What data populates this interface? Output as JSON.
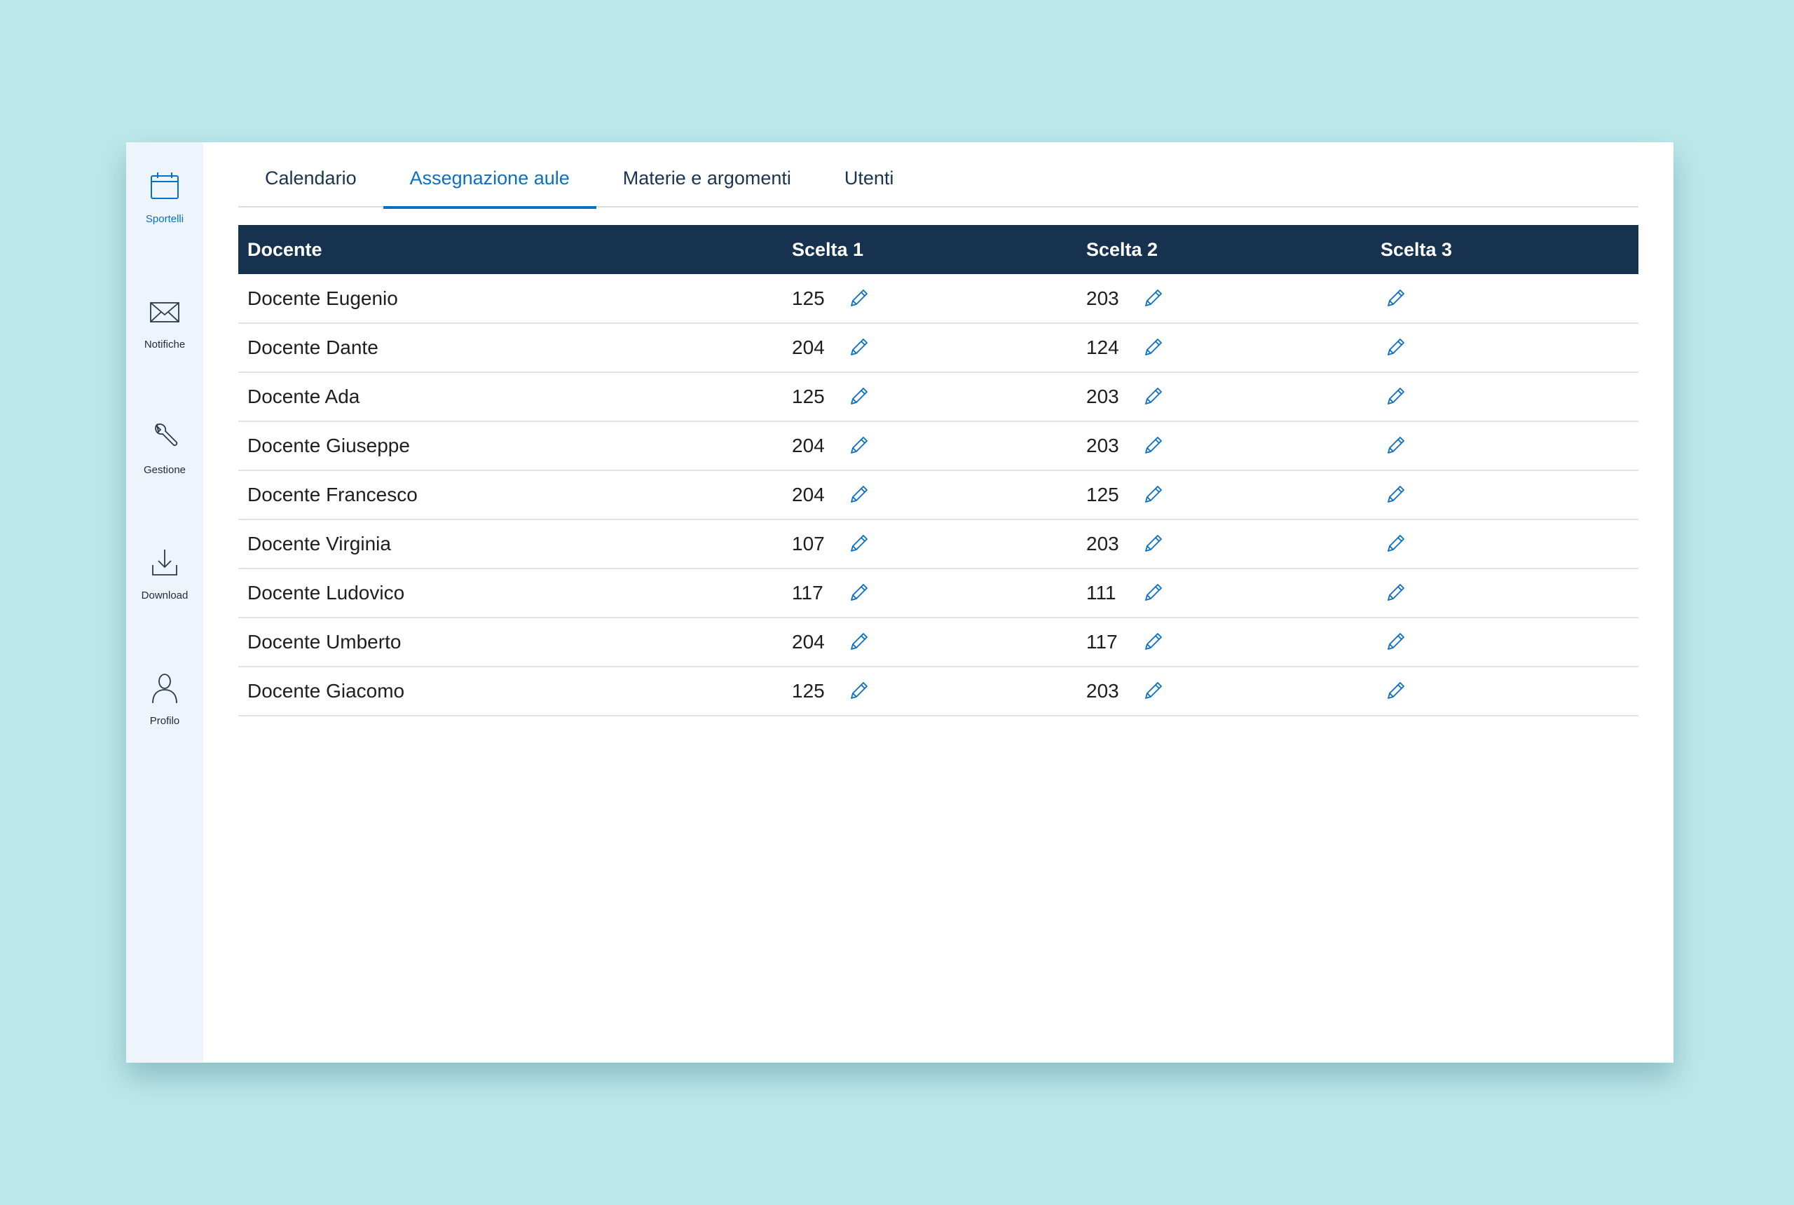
{
  "sidebar": {
    "items": [
      {
        "label": "Sportelli",
        "icon": "calendar-icon",
        "active": true
      },
      {
        "label": "Notifiche",
        "icon": "envelope-icon",
        "active": false
      },
      {
        "label": "Gestione",
        "icon": "wrench-icon",
        "active": false
      },
      {
        "label": "Download",
        "icon": "download-icon",
        "active": false
      },
      {
        "label": "Profilo",
        "icon": "user-icon",
        "active": false
      }
    ]
  },
  "tabs": [
    {
      "label": "Calendario",
      "active": false
    },
    {
      "label": "Assegnazione aule",
      "active": true
    },
    {
      "label": "Materie e argomenti",
      "active": false
    },
    {
      "label": "Utenti",
      "active": false
    }
  ],
  "table": {
    "headers": [
      "Docente",
      "Scelta 1",
      "Scelta 2",
      "Scelta 3"
    ],
    "rows": [
      {
        "docente": "Docente Eugenio",
        "scelta1": "125",
        "scelta2": "203",
        "scelta3": ""
      },
      {
        "docente": "Docente Dante",
        "scelta1": "204",
        "scelta2": "124",
        "scelta3": ""
      },
      {
        "docente": "Docente Ada",
        "scelta1": "125",
        "scelta2": "203",
        "scelta3": ""
      },
      {
        "docente": "Docente Giuseppe",
        "scelta1": "204",
        "scelta2": "203",
        "scelta3": ""
      },
      {
        "docente": "Docente Francesco",
        "scelta1": "204",
        "scelta2": "125",
        "scelta3": ""
      },
      {
        "docente": "Docente Virginia",
        "scelta1": "107",
        "scelta2": "203",
        "scelta3": ""
      },
      {
        "docente": "Docente Ludovico",
        "scelta1": "117",
        "scelta2": "111",
        "scelta3": ""
      },
      {
        "docente": "Docente Umberto",
        "scelta1": "204",
        "scelta2": "117",
        "scelta3": ""
      },
      {
        "docente": "Docente Giacomo",
        "scelta1": "125",
        "scelta2": "203",
        "scelta3": ""
      }
    ],
    "edit_icon": "pencil-icon"
  },
  "colors": {
    "background": "#bde8eb",
    "sidebar": "#eef4fc",
    "accent": "#0b6fc4",
    "header": "#17324f"
  }
}
